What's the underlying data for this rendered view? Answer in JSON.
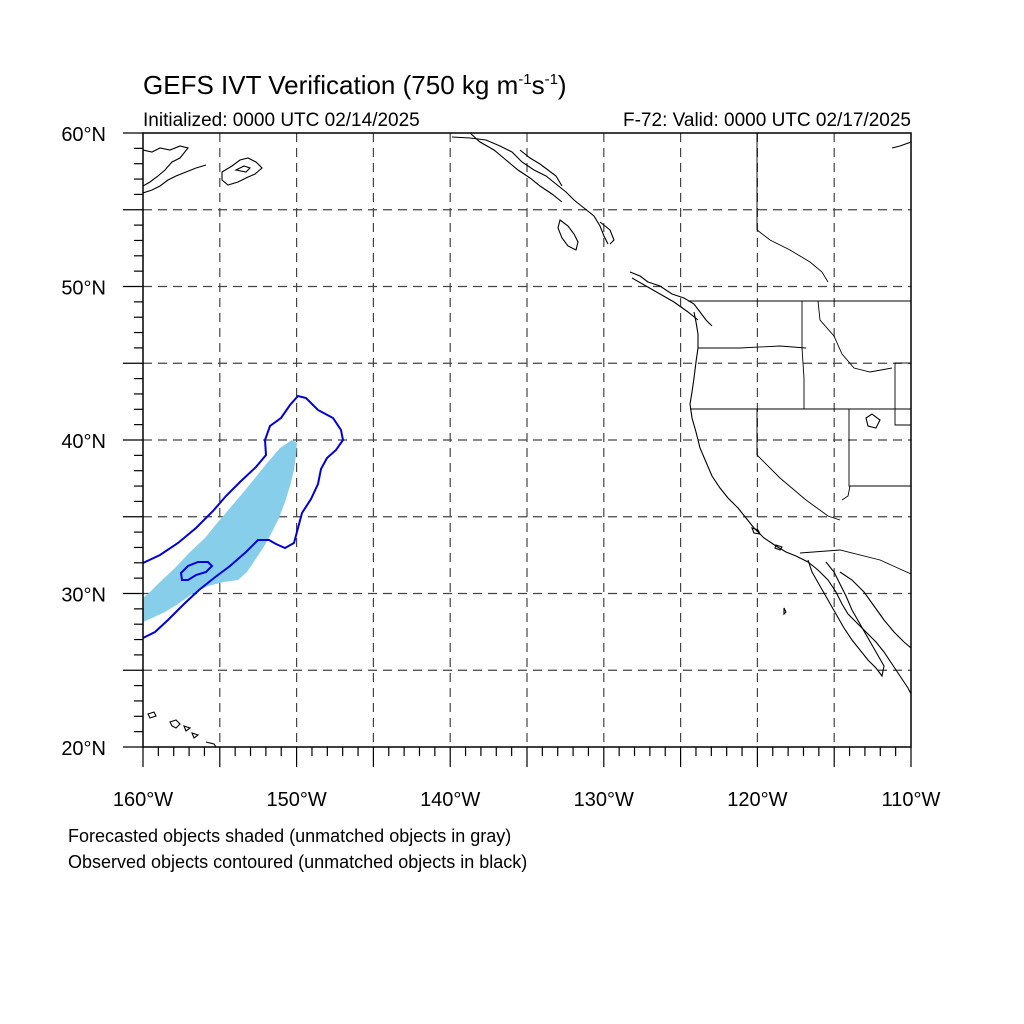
{
  "title": {
    "main": "GEFS IVT Verification (750 kg m",
    "unit_exp1": "-1",
    "unit_mid": "s",
    "unit_exp2": "-1",
    "close": ")"
  },
  "initialized": "Initialized: 0000 UTC 02/14/2025",
  "valid": "F-72: Valid: 0000 UTC 02/17/2025",
  "map": {
    "lat_min": 20,
    "lat_max": 60,
    "lon_min": -160,
    "lon_max": -110,
    "lat_labels": [
      {
        "deg": 60,
        "text": "60°N"
      },
      {
        "deg": 50,
        "text": "50°N"
      },
      {
        "deg": 40,
        "text": "40°N"
      },
      {
        "deg": 30,
        "text": "30°N"
      },
      {
        "deg": 20,
        "text": "20°N"
      }
    ],
    "lon_labels": [
      {
        "deg": -160,
        "text": "160°W"
      },
      {
        "deg": -150,
        "text": "150°W"
      },
      {
        "deg": -140,
        "text": "140°W"
      },
      {
        "deg": -130,
        "text": "130°W"
      },
      {
        "deg": -120,
        "text": "120°W"
      },
      {
        "deg": -110,
        "text": "110°W"
      }
    ],
    "forecast_color": "#87ceeb",
    "observed_color": "#0000dd"
  },
  "notes": {
    "forecast": "Forecasted objects shaded (unmatched objects in gray)",
    "observed": "Observed objects contoured (unmatched objects in black)"
  }
}
